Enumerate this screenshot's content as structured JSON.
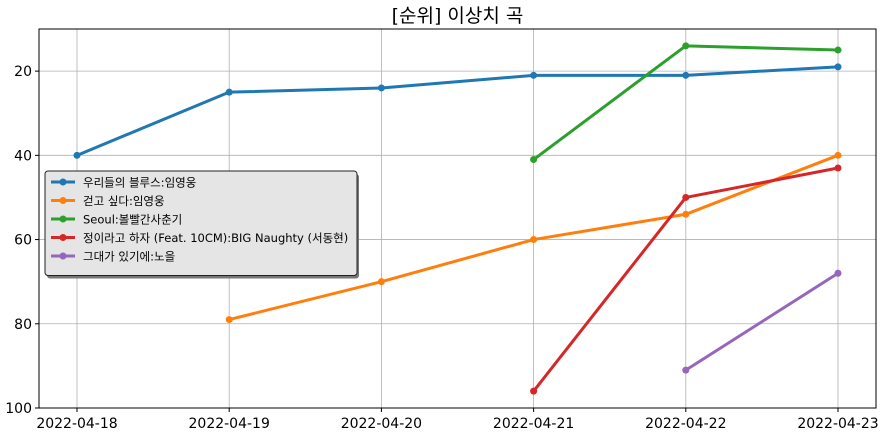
{
  "chart_data": {
    "type": "line",
    "title": "[순위] 이상치 곡",
    "xlabel": "",
    "ylabel": "",
    "categories": [
      "2022-04-18",
      "2022-04-19",
      "2022-04-20",
      "2022-04-21",
      "2022-04-22",
      "2022-04-23"
    ],
    "ylim": [
      100,
      10
    ],
    "y_inverted": true,
    "yticks": [
      20,
      40,
      60,
      80,
      100
    ],
    "grid": true,
    "legend_position": "center-left",
    "series": [
      {
        "name": "우리들의 블루스:임영웅",
        "color": "#1f77b4",
        "values": [
          40,
          25,
          24,
          21,
          21,
          19
        ]
      },
      {
        "name": "걷고 싶다:임영웅",
        "color": "#ff7f0e",
        "values": [
          null,
          79,
          70,
          60,
          54,
          40
        ]
      },
      {
        "name": "Seoul:볼빨간사춘기",
        "color": "#2ca02c",
        "values": [
          null,
          null,
          null,
          41,
          14,
          15
        ]
      },
      {
        "name": "정이라고 하자 (Feat. 10CM):BIG Naughty (서동현)",
        "color": "#d62728",
        "values": [
          null,
          null,
          null,
          96,
          50,
          43
        ]
      },
      {
        "name": "그대가 있기에:노을",
        "color": "#9467bd",
        "values": [
          null,
          null,
          null,
          null,
          91,
          68
        ]
      }
    ]
  }
}
